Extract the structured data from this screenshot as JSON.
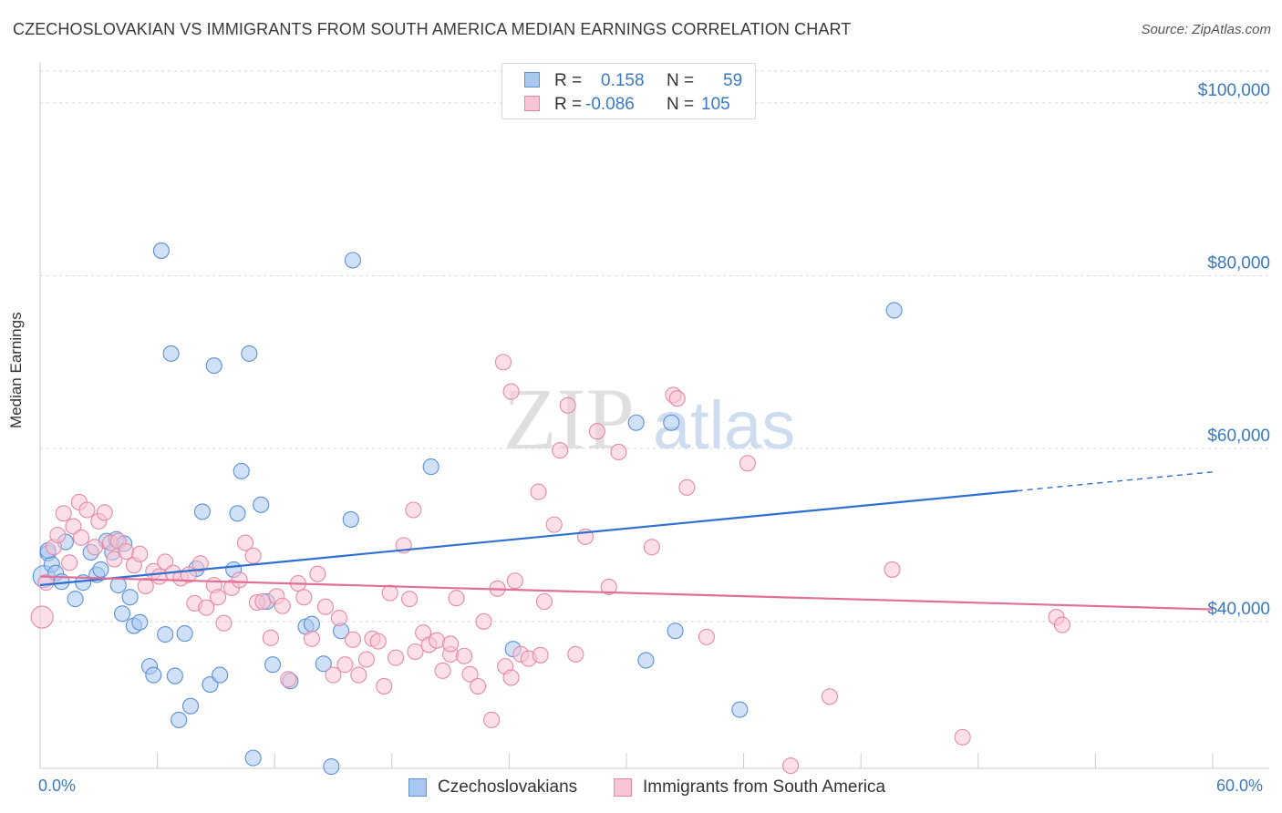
{
  "header": {
    "title": "CZECHOSLOVAKIAN VS IMMIGRANTS FROM SOUTH AMERICA MEDIAN EARNINGS CORRELATION CHART",
    "source": "Source: ZipAtlas.com"
  },
  "legend": {
    "rows": [
      {
        "r_label": "R =",
        "r_value": "0.158",
        "n_label": "N =",
        "n_value": "59",
        "color": "#a9c8f0",
        "stroke": "#5b8fd6"
      },
      {
        "r_label": "R =",
        "r_value": "-0.086",
        "n_label": "N =",
        "n_value": "105",
        "color": "#f9c4d4",
        "stroke": "#e58aa6"
      }
    ]
  },
  "bottom_legend": [
    {
      "label": "Czechoslovakians",
      "color": "#a9c8f0",
      "stroke": "#5b8fd6"
    },
    {
      "label": "Immigrants from South America",
      "color": "#f9c4d4",
      "stroke": "#e58aa6"
    }
  ],
  "watermark": {
    "zip": "ZIP",
    "atlas": "atlas"
  },
  "chart_data": {
    "type": "scatter",
    "title": "CZECHOSLOVAKIAN VS IMMIGRANTS FROM SOUTH AMERICA MEDIAN EARNINGS CORRELATION CHART",
    "xlabel": "",
    "ylabel": "Median Earnings",
    "xlim": [
      0,
      60
    ],
    "ylim": [
      23000,
      104000
    ],
    "x_tick_labels": [
      {
        "value": 0,
        "label": "0.0%"
      },
      {
        "value": 60,
        "label": "60.0%"
      }
    ],
    "y_ticks": [
      {
        "value": 40000,
        "label": "$40,000"
      },
      {
        "value": 60000,
        "label": "$60,000"
      },
      {
        "value": 80000,
        "label": "$80,000"
      },
      {
        "value": 100000,
        "label": "$100,000"
      }
    ],
    "grid": true,
    "series": [
      {
        "name": "Czechoslovakians",
        "color": "#a9c8f0",
        "stroke": "#5b8fd6",
        "trend": {
          "x0": 0,
          "y0": 44200,
          "x1": 60,
          "y1": 57300,
          "solid_until": 50,
          "color": "#2f6fd0"
        },
        "points": [
          [
            0.2,
            45200
          ],
          [
            0.4,
            47900
          ],
          [
            0.6,
            46600
          ],
          [
            0.8,
            45600
          ],
          [
            1.1,
            44600
          ],
          [
            1.3,
            49200
          ],
          [
            1.8,
            42600
          ],
          [
            2.2,
            44500
          ],
          [
            2.6,
            48000
          ],
          [
            2.9,
            45400
          ],
          [
            3.1,
            46000
          ],
          [
            3.4,
            49300
          ],
          [
            3.7,
            48000
          ],
          [
            3.9,
            49500
          ],
          [
            4.0,
            44200
          ],
          [
            4.2,
            40900
          ],
          [
            4.3,
            49000
          ],
          [
            4.6,
            42800
          ],
          [
            4.8,
            39500
          ],
          [
            5.1,
            39900
          ],
          [
            5.6,
            34800
          ],
          [
            5.8,
            33800
          ],
          [
            6.2,
            82900
          ],
          [
            6.4,
            38500
          ],
          [
            6.7,
            71000
          ],
          [
            6.9,
            33700
          ],
          [
            7.1,
            28600
          ],
          [
            7.4,
            38600
          ],
          [
            7.7,
            30200
          ],
          [
            8.0,
            46100
          ],
          [
            8.3,
            52700
          ],
          [
            8.7,
            32700
          ],
          [
            8.9,
            69600
          ],
          [
            9.2,
            33800
          ],
          [
            9.9,
            46000
          ],
          [
            10.1,
            52500
          ],
          [
            10.3,
            57400
          ],
          [
            10.7,
            71000
          ],
          [
            10.9,
            24200
          ],
          [
            11.3,
            53500
          ],
          [
            11.6,
            42300
          ],
          [
            11.9,
            35000
          ],
          [
            12.8,
            33100
          ],
          [
            13.6,
            39400
          ],
          [
            13.9,
            39700
          ],
          [
            14.5,
            35100
          ],
          [
            14.9,
            23200
          ],
          [
            15.4,
            38900
          ],
          [
            15.9,
            51800
          ],
          [
            16.0,
            81800
          ],
          [
            20.0,
            57900
          ],
          [
            24.2,
            36800
          ],
          [
            30.5,
            63000
          ],
          [
            31.0,
            35500
          ],
          [
            32.3,
            63000
          ],
          [
            32.5,
            38900
          ],
          [
            35.8,
            29800
          ],
          [
            43.7,
            76000
          ],
          [
            0.4,
            48200
          ]
        ]
      },
      {
        "name": "Immigrants from South America",
        "color": "#f9c4d4",
        "stroke": "#e58aa6",
        "trend": {
          "x0": 0,
          "y0": 45200,
          "x1": 60,
          "y1": 41400,
          "solid_until": 60,
          "color": "#e0709a"
        },
        "points": [
          [
            0.1,
            40500
          ],
          [
            0.3,
            44500
          ],
          [
            0.7,
            48600
          ],
          [
            0.9,
            50000
          ],
          [
            1.2,
            52500
          ],
          [
            1.5,
            46800
          ],
          [
            1.7,
            51000
          ],
          [
            2.0,
            53800
          ],
          [
            2.1,
            49700
          ],
          [
            2.4,
            52900
          ],
          [
            2.8,
            48600
          ],
          [
            3.0,
            51600
          ],
          [
            3.3,
            52600
          ],
          [
            3.6,
            49100
          ],
          [
            3.8,
            47200
          ],
          [
            4.0,
            49300
          ],
          [
            4.4,
            48100
          ],
          [
            4.8,
            46500
          ],
          [
            5.1,
            47800
          ],
          [
            5.4,
            44100
          ],
          [
            5.8,
            45800
          ],
          [
            6.1,
            45200
          ],
          [
            6.4,
            46900
          ],
          [
            6.8,
            45600
          ],
          [
            7.2,
            45000
          ],
          [
            7.6,
            45400
          ],
          [
            7.9,
            42100
          ],
          [
            8.2,
            46700
          ],
          [
            8.5,
            41600
          ],
          [
            8.9,
            44200
          ],
          [
            9.1,
            42800
          ],
          [
            9.4,
            39800
          ],
          [
            9.8,
            43900
          ],
          [
            10.2,
            44800
          ],
          [
            10.5,
            49100
          ],
          [
            10.9,
            47600
          ],
          [
            11.1,
            42200
          ],
          [
            11.4,
            42300
          ],
          [
            11.8,
            38100
          ],
          [
            12.1,
            42900
          ],
          [
            12.4,
            41800
          ],
          [
            12.7,
            33300
          ],
          [
            13.2,
            44400
          ],
          [
            13.5,
            42800
          ],
          [
            13.9,
            38000
          ],
          [
            14.2,
            45500
          ],
          [
            14.6,
            41700
          ],
          [
            15.0,
            33800
          ],
          [
            15.3,
            40400
          ],
          [
            15.6,
            35000
          ],
          [
            16.0,
            37900
          ],
          [
            16.3,
            33800
          ],
          [
            16.7,
            35600
          ],
          [
            17.0,
            38000
          ],
          [
            17.3,
            37700
          ],
          [
            17.6,
            32500
          ],
          [
            17.9,
            43300
          ],
          [
            18.2,
            35800
          ],
          [
            18.6,
            48800
          ],
          [
            18.9,
            42600
          ],
          [
            19.2,
            36500
          ],
          [
            19.6,
            38700
          ],
          [
            19.9,
            37300
          ],
          [
            20.3,
            37800
          ],
          [
            20.6,
            34300
          ],
          [
            21.0,
            36200
          ],
          [
            21.3,
            42700
          ],
          [
            21.7,
            36000
          ],
          [
            22.0,
            33900
          ],
          [
            22.4,
            32500
          ],
          [
            22.7,
            40000
          ],
          [
            23.1,
            28600
          ],
          [
            23.4,
            43800
          ],
          [
            23.8,
            34800
          ],
          [
            24.1,
            33500
          ],
          [
            24.3,
            44700
          ],
          [
            24.6,
            36200
          ],
          [
            25.0,
            35700
          ],
          [
            25.5,
            55000
          ],
          [
            25.8,
            42300
          ],
          [
            26.3,
            51200
          ],
          [
            26.6,
            59800
          ],
          [
            27.0,
            65000
          ],
          [
            27.4,
            36200
          ],
          [
            27.9,
            49800
          ],
          [
            28.5,
            62000
          ],
          [
            29.1,
            44000
          ],
          [
            29.6,
            59600
          ],
          [
            31.3,
            48600
          ],
          [
            32.4,
            66200
          ],
          [
            32.6,
            65800
          ],
          [
            33.1,
            55500
          ],
          [
            34.1,
            38200
          ],
          [
            36.2,
            58300
          ],
          [
            38.4,
            23300
          ],
          [
            40.4,
            31300
          ],
          [
            43.6,
            46000
          ],
          [
            47.2,
            26600
          ],
          [
            52.0,
            40500
          ],
          [
            52.3,
            39600
          ],
          [
            23.7,
            70000
          ],
          [
            24.1,
            66600
          ],
          [
            25.6,
            36100
          ],
          [
            19.1,
            52900
          ],
          [
            21.0,
            37400
          ]
        ]
      }
    ]
  }
}
